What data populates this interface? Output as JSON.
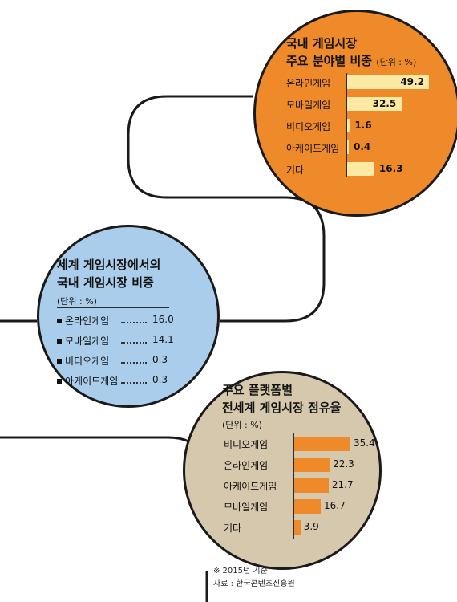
{
  "chart_data": [
    {
      "type": "bar",
      "title_lines": [
        "국내 게임시장",
        "주요 분야별 비중"
      ],
      "unit": "(단위 : %)",
      "categories": [
        "온라인게임",
        "모바일게임",
        "비디오게임",
        "아케이드게임",
        "기타"
      ],
      "values": [
        49.2,
        32.5,
        1.6,
        0.4,
        16.3
      ],
      "value_labels": [
        "49.2",
        "32.5",
        "1.6",
        "0.4",
        "16.3"
      ],
      "colors": {
        "circle": "#ee8a2a",
        "bar": "#fce9a4"
      }
    },
    {
      "type": "table",
      "title_lines": [
        "세계 게임시장에서의",
        "국내 게임시장 비중"
      ],
      "unit": "(단위 : %)",
      "categories": [
        "온라인게임",
        "모바일게임",
        "비디오게임",
        "아케이드게임"
      ],
      "values": [
        16.0,
        14.1,
        0.3,
        0.3
      ],
      "value_labels": [
        "16.0",
        "14.1",
        "0.3",
        "0.3"
      ],
      "colors": {
        "circle": "#a9cdeb"
      }
    },
    {
      "type": "bar",
      "title_lines": [
        "주요 플랫폼별",
        "전세계 게임시장 점유율"
      ],
      "unit": "(단위 : %)",
      "categories": [
        "비디오게임",
        "온라인게임",
        "아케이드게임",
        "모바일게임",
        "기타"
      ],
      "values": [
        35.4,
        22.3,
        21.7,
        16.7,
        3.9
      ],
      "value_labels": [
        "35.4",
        "22.3",
        "21.7",
        "16.7",
        "3.9"
      ],
      "colors": {
        "circle": "#d6c8ac",
        "bar": "#ee8a2a"
      }
    }
  ],
  "footnotes": [
    "※ 2015년 기준",
    "자료 : 한국콘텐츠진흥원"
  ]
}
